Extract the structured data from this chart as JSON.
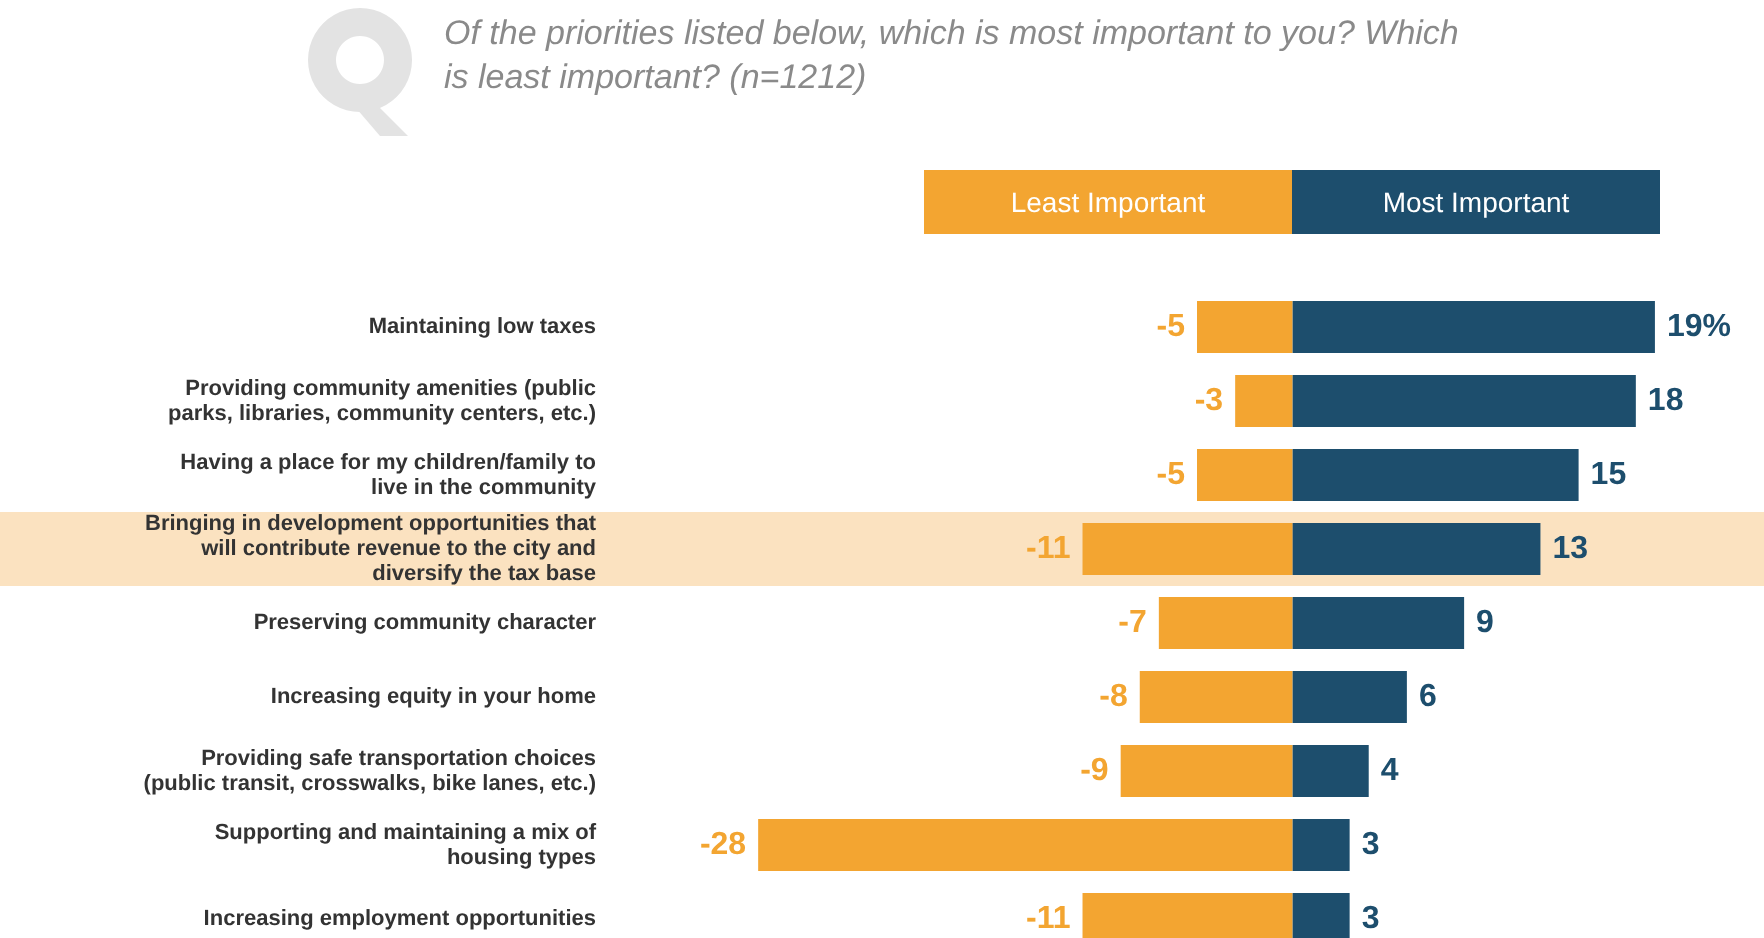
{
  "chart_data": {
    "type": "bar",
    "orientation": "horizontal",
    "stacked": true,
    "title": "Of the priorities listed below, which is most important to you? Which is least important? (n=1212)",
    "categories": [
      "Maintaining low taxes",
      "Providing community amenities (public parks, libraries, community centers, etc.)",
      "Having a place for my children/family to live in the community",
      "Bringing in development opportunities that will contribute revenue to the city and diversify the tax base",
      "Preserving community character",
      "Increasing equity in your home",
      "Providing safe transportation choices (public transit, crosswalks, bike lanes, etc.)",
      "Supporting and maintaining a mix of housing types",
      "Increasing employment opportunities"
    ],
    "series": [
      {
        "name": "Least Important",
        "color": "#f3a531",
        "values": [
          -5,
          -3,
          -5,
          -11,
          -7,
          -8,
          -9,
          -28,
          -11
        ],
        "value_labels": [
          "-5",
          "-3",
          "-5",
          "-11",
          "-7",
          "-8",
          "-9",
          "-28",
          "-11"
        ]
      },
      {
        "name": "Most Important",
        "color": "#1d4e6d",
        "values": [
          19,
          18,
          15,
          13,
          9,
          6,
          4,
          3,
          3
        ],
        "value_labels": [
          "19%",
          "18",
          "15",
          "13",
          "9",
          "6",
          "4",
          "3",
          "3"
        ]
      }
    ],
    "bands": [
      {
        "axis": "y",
        "from": "Bringing in development opportunities that will contribute revenue to the city and diversify the tax base",
        "to": "Bringing in development opportunities that will contribute revenue to the city and diversify the tax base",
        "color": "#fbe2c0"
      }
    ],
    "legend": "top",
    "grid": false
  }
}
